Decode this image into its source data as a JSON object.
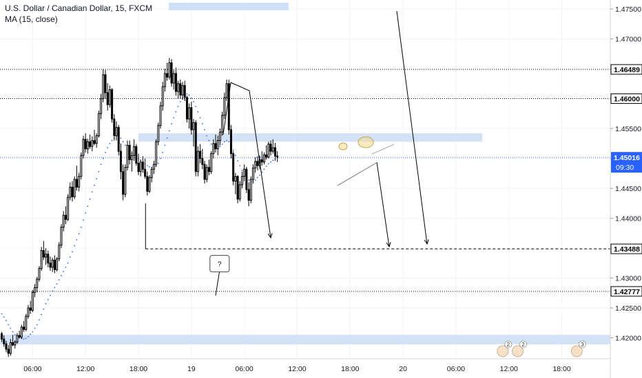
{
  "chart_data": {
    "type": "candlestick",
    "title": "U.S. Dollar / Canadian Dollar, 15, FXCM",
    "indicator": "MA (15, close)",
    "y_range": [
      1.4165,
      1.4765
    ],
    "y_tick_labels": [
      "1.47500",
      "1.47000",
      "1.46500",
      "1.46000",
      "1.45500",
      "1.45000",
      "1.44500",
      "1.44000",
      "1.43500",
      "1.43000",
      "1.42500",
      "1.42000"
    ],
    "y_tick_values": [
      1.475,
      1.47,
      1.465,
      1.46,
      1.455,
      1.45,
      1.445,
      1.44,
      1.435,
      1.43,
      1.425,
      1.42
    ],
    "x_tick_labels": [
      "06:00",
      "12:00",
      "18:00",
      "19",
      "06:00",
      "12:00",
      "18:00",
      "20",
      "06:00",
      "12:00",
      "18:00"
    ],
    "x_tick_hours": [
      6,
      12,
      18,
      24,
      30,
      36,
      42,
      48,
      54,
      60,
      66
    ],
    "x_range_hours": [
      2.3,
      71.5
    ],
    "price_levels": [
      {
        "value": 1.46489,
        "label": "1.46489",
        "style": "dotted"
      },
      {
        "value": 1.46,
        "label": "1.46000",
        "style": "dotted"
      },
      {
        "value": 1.43488,
        "label": "1.43488",
        "style": "dashed"
      },
      {
        "value": 1.42777,
        "label": "1.42777",
        "style": "dotted"
      }
    ],
    "current_price": {
      "value": 1.45016,
      "label": "1.45016",
      "countdown": "09:30",
      "color": "#2962ff"
    },
    "zones": [
      {
        "x_start_hours": 18,
        "x_end_hours": 57,
        "y_low": 1.4528,
        "y_high": 1.4542
      },
      {
        "x_start_hours": 2.3,
        "x_end_hours": 71.5,
        "y_low": 1.4189,
        "y_high": 1.4205
      }
    ],
    "annotations": [
      {
        "type": "callout",
        "text": "?",
        "x_hours": 27.2,
        "y": 1.4324
      }
    ],
    "event_badges": [
      {
        "count": "2",
        "x_hours": 59.3
      },
      {
        "count": "2",
        "x_hours": 61.0
      },
      {
        "count": "3",
        "x_hours": 67.7
      }
    ],
    "colors": {
      "candle": "#000000",
      "ma": "#2962ff",
      "zone": "#cfdff7",
      "level": "#000000",
      "grid": "#f0f3fa"
    },
    "series": [
      {
        "type": "ohlc",
        "step_hours": 0.25,
        "start_hours": 2.5,
        "ohlc": [
          [
            1.4207,
            1.421,
            1.4193,
            1.4198
          ],
          [
            1.4198,
            1.4204,
            1.4185,
            1.419
          ],
          [
            1.419,
            1.4195,
            1.4176,
            1.4181
          ],
          [
            1.4181,
            1.4188,
            1.4168,
            1.4174
          ],
          [
            1.4174,
            1.4198,
            1.417,
            1.4192
          ],
          [
            1.4192,
            1.4205,
            1.4186,
            1.4188
          ],
          [
            1.4188,
            1.4196,
            1.4182,
            1.4193
          ],
          [
            1.4193,
            1.4208,
            1.419,
            1.4204
          ],
          [
            1.4204,
            1.4212,
            1.4199,
            1.4201
          ],
          [
            1.4201,
            1.4222,
            1.4198,
            1.4218
          ],
          [
            1.4218,
            1.4228,
            1.421,
            1.4214
          ],
          [
            1.4214,
            1.424,
            1.4211,
            1.4236
          ],
          [
            1.4236,
            1.4255,
            1.4232,
            1.425
          ],
          [
            1.425,
            1.4262,
            1.424,
            1.4246
          ],
          [
            1.4246,
            1.428,
            1.4243,
            1.4276
          ],
          [
            1.4276,
            1.429,
            1.4268,
            1.4284
          ],
          [
            1.4284,
            1.4302,
            1.4276,
            1.4298
          ],
          [
            1.4298,
            1.432,
            1.4294,
            1.4316
          ],
          [
            1.4316,
            1.4352,
            1.4312,
            1.4346
          ],
          [
            1.4346,
            1.4362,
            1.433,
            1.4335
          ],
          [
            1.4335,
            1.435,
            1.4322,
            1.434
          ],
          [
            1.434,
            1.4346,
            1.4318,
            1.4325
          ],
          [
            1.4325,
            1.4336,
            1.4312,
            1.4318
          ],
          [
            1.4318,
            1.4334,
            1.431,
            1.433
          ],
          [
            1.433,
            1.4338,
            1.4308,
            1.4314
          ],
          [
            1.4314,
            1.4335,
            1.4311,
            1.4332
          ],
          [
            1.4332,
            1.436,
            1.4328,
            1.4355
          ],
          [
            1.4355,
            1.439,
            1.435,
            1.4385
          ],
          [
            1.4385,
            1.4412,
            1.4378,
            1.4405
          ],
          [
            1.4405,
            1.442,
            1.439,
            1.4398
          ],
          [
            1.4398,
            1.444,
            1.4395,
            1.4435
          ],
          [
            1.4435,
            1.446,
            1.443,
            1.4452
          ],
          [
            1.4452,
            1.4462,
            1.4428,
            1.4436
          ],
          [
            1.4436,
            1.447,
            1.4432,
            1.4465
          ],
          [
            1.4465,
            1.4488,
            1.4446,
            1.4452
          ],
          [
            1.4452,
            1.4476,
            1.4445,
            1.447
          ],
          [
            1.447,
            1.451,
            1.4465,
            1.4505
          ],
          [
            1.4505,
            1.4538,
            1.45,
            1.4532
          ],
          [
            1.4532,
            1.4542,
            1.451,
            1.4516
          ],
          [
            1.4516,
            1.4533,
            1.4508,
            1.4528
          ],
          [
            1.4528,
            1.454,
            1.4516,
            1.452
          ],
          [
            1.452,
            1.4537,
            1.4512,
            1.453
          ],
          [
            1.453,
            1.4548,
            1.4522,
            1.4525
          ],
          [
            1.4525,
            1.4542,
            1.4518,
            1.4538
          ],
          [
            1.4538,
            1.458,
            1.4535,
            1.4575
          ],
          [
            1.4575,
            1.4608,
            1.4566,
            1.46
          ],
          [
            1.46,
            1.4649,
            1.4594,
            1.464
          ],
          [
            1.464,
            1.4648,
            1.46,
            1.461
          ],
          [
            1.461,
            1.4626,
            1.458,
            1.459
          ],
          [
            1.459,
            1.4622,
            1.4585,
            1.4615
          ],
          [
            1.4615,
            1.4618,
            1.456,
            1.4566
          ],
          [
            1.4566,
            1.4574,
            1.453,
            1.4538
          ],
          [
            1.4538,
            1.4562,
            1.453,
            1.4552
          ],
          [
            1.4552,
            1.4556,
            1.4505,
            1.4512
          ],
          [
            1.4512,
            1.4525,
            1.4465,
            1.4478
          ],
          [
            1.4478,
            1.449,
            1.443,
            1.444
          ],
          [
            1.444,
            1.449,
            1.4435,
            1.4485
          ],
          [
            1.4485,
            1.453,
            1.448,
            1.4522
          ],
          [
            1.4522,
            1.453,
            1.449,
            1.4498
          ],
          [
            1.4498,
            1.4512,
            1.4478,
            1.4505
          ],
          [
            1.4505,
            1.4532,
            1.4496,
            1.452
          ],
          [
            1.452,
            1.4524,
            1.4488,
            1.4492
          ],
          [
            1.4492,
            1.4508,
            1.4472,
            1.4478
          ],
          [
            1.4478,
            1.4498,
            1.447,
            1.4494
          ],
          [
            1.4494,
            1.4504,
            1.4476,
            1.4482
          ],
          [
            1.4482,
            1.45,
            1.4466,
            1.447
          ],
          [
            1.447,
            1.4478,
            1.4438,
            1.4445
          ],
          [
            1.4445,
            1.4472,
            1.4442,
            1.4468
          ],
          [
            1.4468,
            1.4486,
            1.446,
            1.4482
          ],
          [
            1.4482,
            1.4496,
            1.4474,
            1.449
          ],
          [
            1.449,
            1.4532,
            1.4486,
            1.4528
          ],
          [
            1.4528,
            1.456,
            1.4522,
            1.4555
          ],
          [
            1.4555,
            1.4595,
            1.455,
            1.4588
          ],
          [
            1.4588,
            1.4628,
            1.458,
            1.462
          ],
          [
            1.462,
            1.465,
            1.4612,
            1.4642
          ],
          [
            1.4642,
            1.466,
            1.463,
            1.4636
          ],
          [
            1.4636,
            1.4668,
            1.4632,
            1.466
          ],
          [
            1.466,
            1.4666,
            1.462,
            1.4626
          ],
          [
            1.4626,
            1.4648,
            1.4615,
            1.4642
          ],
          [
            1.4642,
            1.4652,
            1.4605,
            1.4612
          ],
          [
            1.4612,
            1.463,
            1.46,
            1.4625
          ],
          [
            1.4625,
            1.4632,
            1.46,
            1.4606
          ],
          [
            1.4606,
            1.4628,
            1.4598,
            1.4622
          ],
          [
            1.4622,
            1.463,
            1.4596,
            1.4602
          ],
          [
            1.4602,
            1.4605,
            1.456,
            1.4566
          ],
          [
            1.4566,
            1.4592,
            1.455,
            1.4585
          ],
          [
            1.4585,
            1.4595,
            1.454,
            1.4548
          ],
          [
            1.4548,
            1.4566,
            1.452,
            1.456
          ],
          [
            1.456,
            1.4564,
            1.447,
            1.4478
          ],
          [
            1.4478,
            1.452,
            1.447,
            1.4512
          ],
          [
            1.4512,
            1.4524,
            1.4492,
            1.45
          ],
          [
            1.45,
            1.4516,
            1.4482,
            1.449
          ],
          [
            1.449,
            1.4496,
            1.4458,
            1.4465
          ],
          [
            1.4465,
            1.449,
            1.446,
            1.4485
          ],
          [
            1.4485,
            1.4498,
            1.4472,
            1.4478
          ],
          [
            1.4478,
            1.4512,
            1.4474,
            1.4508
          ],
          [
            1.4508,
            1.4532,
            1.45,
            1.4525
          ],
          [
            1.4525,
            1.454,
            1.451,
            1.4516
          ],
          [
            1.4516,
            1.4538,
            1.4505,
            1.453
          ],
          [
            1.453,
            1.455,
            1.4522,
            1.4544
          ],
          [
            1.4544,
            1.4578,
            1.4538,
            1.4572
          ],
          [
            1.4572,
            1.461,
            1.4566,
            1.4602
          ],
          [
            1.4602,
            1.4632,
            1.4596,
            1.4625
          ],
          [
            1.4625,
            1.4632,
            1.454,
            1.4548
          ],
          [
            1.4548,
            1.4556,
            1.45,
            1.4508
          ],
          [
            1.4508,
            1.4512,
            1.4455,
            1.4462
          ],
          [
            1.4462,
            1.4476,
            1.444,
            1.447
          ],
          [
            1.447,
            1.4472,
            1.4425,
            1.4432
          ],
          [
            1.4432,
            1.4462,
            1.4428,
            1.4456
          ],
          [
            1.4456,
            1.4478,
            1.445,
            1.447
          ],
          [
            1.447,
            1.449,
            1.4462,
            1.4482
          ],
          [
            1.4482,
            1.4486,
            1.4442,
            1.4448
          ],
          [
            1.4448,
            1.446,
            1.442,
            1.443
          ],
          [
            1.443,
            1.447,
            1.4425,
            1.4465
          ],
          [
            1.4465,
            1.449,
            1.4458,
            1.4484
          ],
          [
            1.4484,
            1.4502,
            1.4476,
            1.4495
          ],
          [
            1.4495,
            1.4504,
            1.448,
            1.4488
          ],
          [
            1.4488,
            1.4505,
            1.4482,
            1.4498
          ],
          [
            1.4498,
            1.4512,
            1.4488,
            1.4494
          ],
          [
            1.4494,
            1.451,
            1.449,
            1.4506
          ],
          [
            1.4506,
            1.4522,
            1.4498,
            1.4502
          ],
          [
            1.4502,
            1.4528,
            1.45,
            1.4524
          ],
          [
            1.4524,
            1.453,
            1.4505,
            1.4512
          ],
          [
            1.4512,
            1.4532,
            1.4508,
            1.4518
          ],
          [
            1.4518,
            1.4526,
            1.4496,
            1.4504
          ],
          [
            1.4504,
            1.4512,
            1.4494,
            1.4502
          ]
        ]
      },
      {
        "type": "ma",
        "name": "MA (15, close)",
        "step_hours": 0.25,
        "start_hours": 2.5,
        "values": [
          1.424,
          1.4235,
          1.4229,
          1.4222,
          1.4216,
          1.421,
          1.4205,
          1.4202,
          1.42,
          1.4199,
          1.4198,
          1.4199,
          1.4202,
          1.4206,
          1.421,
          1.4216,
          1.4222,
          1.423,
          1.4239,
          1.4248,
          1.4257,
          1.4264,
          1.4271,
          1.4278,
          1.4284,
          1.429,
          1.4297,
          1.4304,
          1.4311,
          1.4318,
          1.4325,
          1.4335,
          1.4344,
          1.4354,
          1.4364,
          1.4374,
          1.4385,
          1.4397,
          1.4409,
          1.442,
          1.4432,
          1.4444,
          1.4455,
          1.4466,
          1.4478,
          1.449,
          1.45,
          1.451,
          1.4518,
          1.4525,
          1.453,
          1.4534,
          1.4537,
          1.4537,
          1.4534,
          1.4528,
          1.4522,
          1.4517,
          1.4512,
          1.4508,
          1.4505,
          1.4502,
          1.45,
          1.4497,
          1.4494,
          1.4491,
          1.4488,
          1.4486,
          1.4485,
          1.4485,
          1.4487,
          1.4492,
          1.45,
          1.451,
          1.4522,
          1.4534,
          1.4546,
          1.4558,
          1.4568,
          1.4578,
          1.4587,
          1.4595,
          1.4602,
          1.4607,
          1.4608,
          1.4606,
          1.4601,
          1.4595,
          1.4587,
          1.4578,
          1.4568,
          1.4558,
          1.4548,
          1.4538,
          1.453,
          1.4524,
          1.452,
          1.4518,
          1.4518,
          1.452,
          1.4524,
          1.4528,
          1.453,
          1.4528,
          1.4522,
          1.4514,
          1.4505,
          1.4496,
          1.4488,
          1.448,
          1.4474,
          1.4468,
          1.4464,
          1.4462,
          1.4462,
          1.4464,
          1.4468,
          1.4472,
          1.4477,
          1.4482,
          1.4487,
          1.4491,
          1.4494,
          1.4497,
          1.4499
        ]
      }
    ]
  }
}
